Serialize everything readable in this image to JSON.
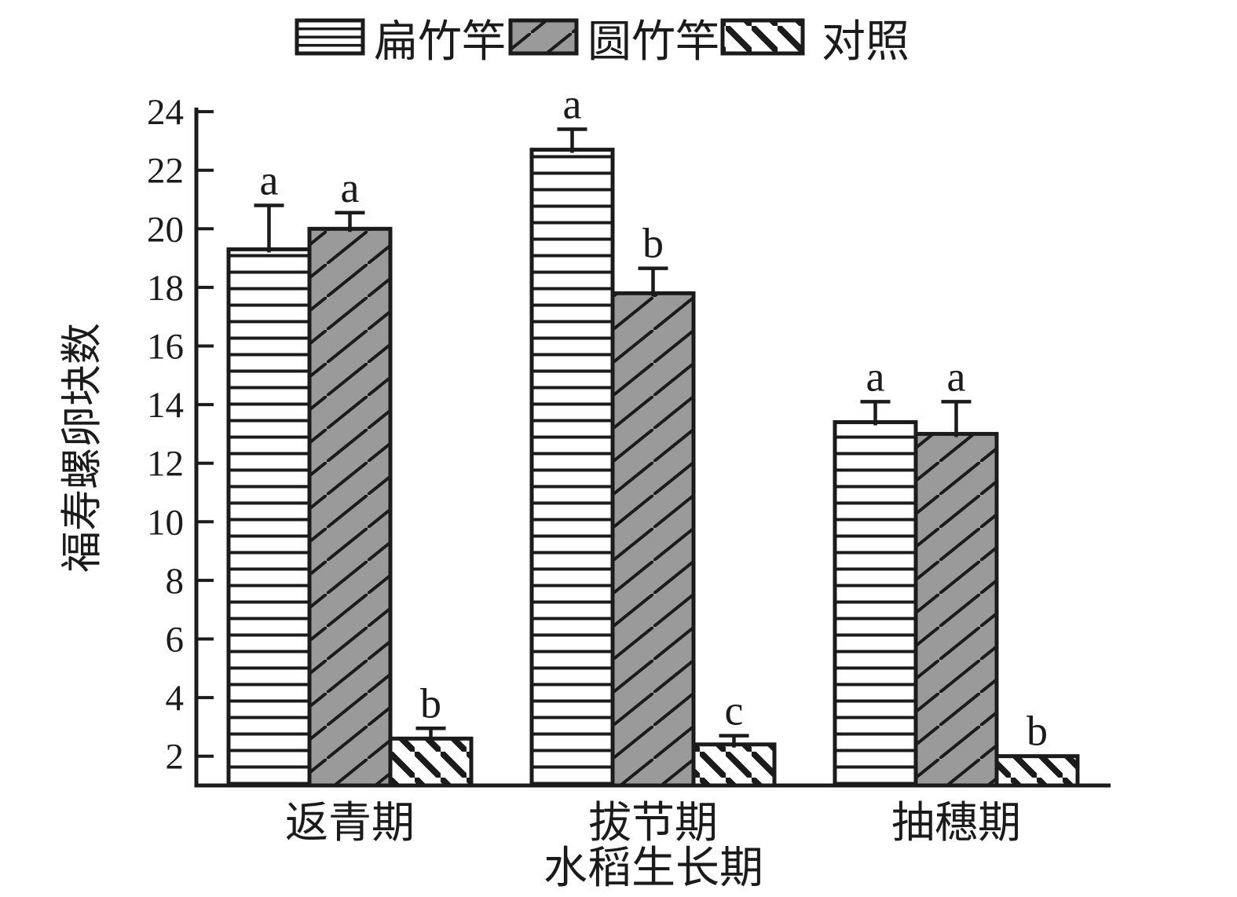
{
  "figure": {
    "background": "#ffffff",
    "ink_color": "#1b1b1b",
    "gray_fill": "#9a9a9a"
  },
  "chart_data": {
    "type": "bar",
    "title": "",
    "categories": [
      "返青期",
      "拔节期",
      "抽穗期"
    ],
    "series": [
      {
        "name": "扁竹竿",
        "key": "flat-bamboo",
        "pattern": "horizontal-lines",
        "fill": "#ffffff",
        "values": [
          19.3,
          22.7,
          13.4
        ],
        "errors": [
          1.5,
          0.7,
          0.7
        ],
        "sig_letters": [
          "a",
          "a",
          "a"
        ]
      },
      {
        "name": "圆竹竿",
        "key": "round-bamboo",
        "pattern": "diagonal-forward",
        "fill": "#9a9a9a",
        "values": [
          20.0,
          17.8,
          13.0
        ],
        "errors": [
          0.55,
          0.85,
          1.1
        ],
        "sig_letters": [
          "a",
          "b",
          "a"
        ]
      },
      {
        "name": "对照",
        "key": "control",
        "pattern": "diagonal-back",
        "fill": "#ffffff",
        "values": [
          2.6,
          2.4,
          2.0
        ],
        "errors": [
          0.35,
          0.3,
          0
        ],
        "sig_letters": [
          "b",
          "c",
          "b"
        ]
      }
    ],
    "xlabel": "水稻生长期",
    "ylabel": "福寿螺卵块数",
    "y_ticks": [
      2,
      4,
      6,
      8,
      10,
      12,
      14,
      16,
      18,
      20,
      22,
      24
    ],
    "ylim": [
      1,
      24.1
    ],
    "grid": false,
    "legend_position": "top"
  }
}
